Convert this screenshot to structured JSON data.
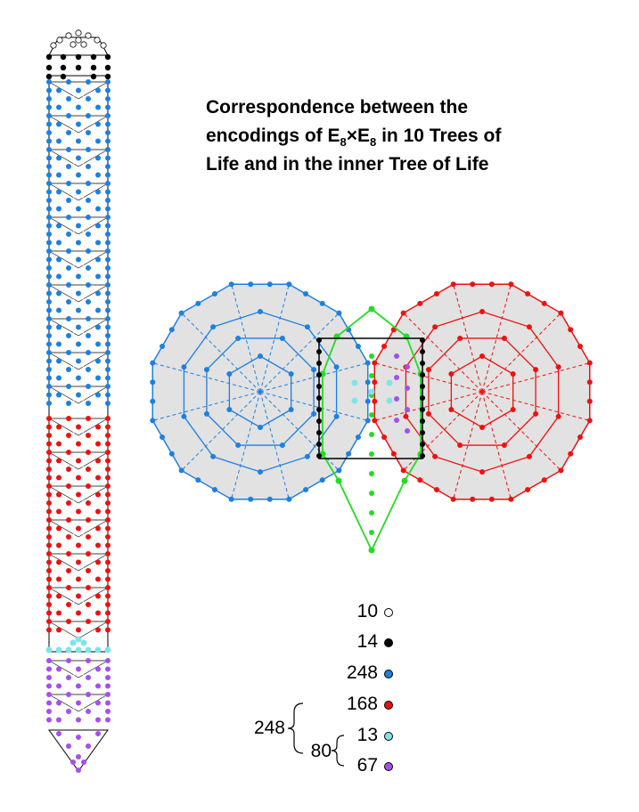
{
  "title": {
    "line1": "Correspondence between the",
    "line2_pre": "encodings of E",
    "line2_sub1": "8",
    "line2_mid": "×E",
    "line2_sub2": "8",
    "line2_post": " in 10 Trees of",
    "line3": "Life and in the inner Tree of Life"
  },
  "colors": {
    "white": "#ffffff",
    "black": "#000000",
    "blue": "#1e7fe0",
    "red": "#ee1111",
    "cyan": "#80e4e8",
    "purple": "#a64ff0",
    "green": "#22dd22",
    "grey_fill": "#e2e2e2"
  },
  "legend": {
    "items": [
      {
        "count": "10",
        "color": "#ffffff"
      },
      {
        "count": "14",
        "color": "#000000"
      },
      {
        "count": "248",
        "color": "#1e7fe0"
      },
      {
        "count": "168",
        "color": "#ee1111"
      },
      {
        "count": "13",
        "color": "#80e4e8"
      },
      {
        "count": "67",
        "color": "#a64ff0"
      }
    ],
    "brace_outer_label": "248",
    "brace_inner_label": "80"
  }
}
